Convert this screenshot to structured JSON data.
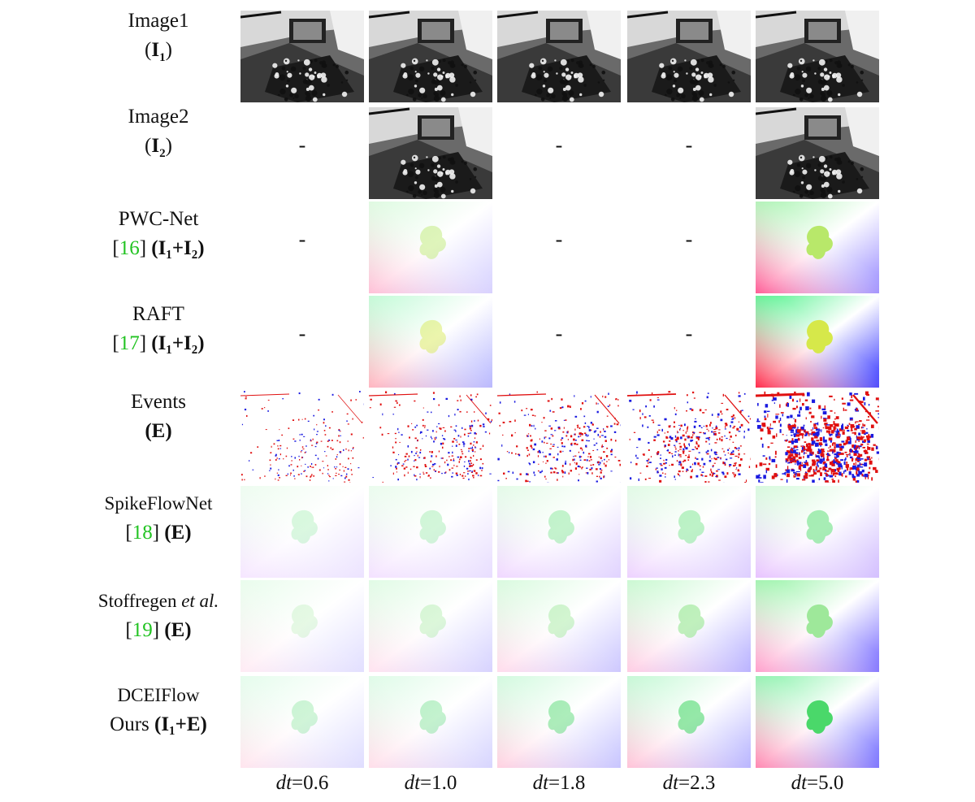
{
  "rows": [
    {
      "line1": "Image1",
      "open": "(",
      "sym": "I",
      "sub": "1",
      "close": ")"
    },
    {
      "line1": "Image2",
      "open": "(",
      "sym": "I",
      "sub": "2",
      "close": ")"
    },
    {
      "line1": "PWC-Net",
      "ref": "16",
      "expr": "(I₁+I₂)"
    },
    {
      "line1": "RAFT",
      "ref": "17",
      "expr": "(I₁+I₂)"
    },
    {
      "line1": "Events",
      "expr": "(E)"
    },
    {
      "line1": "SpikeFlowNet",
      "ref": "18",
      "expr": "(E)"
    },
    {
      "line1": "Stoffregen",
      "line1_em": "et al.",
      "ref": "19",
      "expr": "(E)"
    },
    {
      "line1": "DCEIFlow",
      "line2_prefix": "Ours",
      "expr": "(I₁+E)"
    }
  ],
  "columns": [
    {
      "var": "dt",
      "label": "=0.6"
    },
    {
      "var": "dt",
      "label": "=1.0"
    },
    {
      "var": "dt",
      "label": "=1.8"
    },
    {
      "var": "dt",
      "label": "=2.3"
    },
    {
      "var": "dt",
      "label": "=5.0"
    }
  ],
  "placeholder": "-",
  "availability": {
    "image2": [
      false,
      true,
      false,
      false,
      true
    ],
    "pwc": [
      false,
      true,
      false,
      false,
      true
    ],
    "raft": [
      false,
      true,
      false,
      false,
      true
    ]
  },
  "colors": {
    "citation": "#22c322",
    "event_positive": "#e01010",
    "event_negative": "#1a1ae0"
  }
}
